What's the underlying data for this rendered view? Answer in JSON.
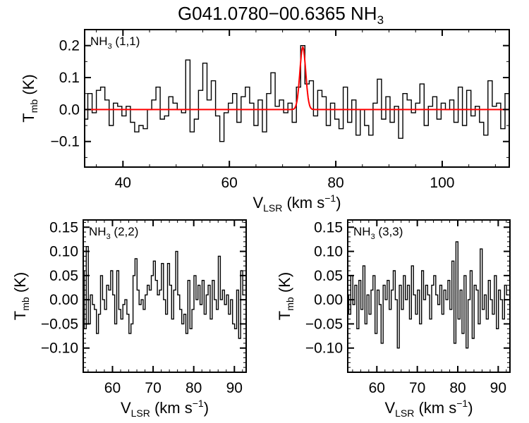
{
  "title": {
    "main": "G041.0780−00.6365 NH",
    "sub": "3"
  },
  "chart_data": [
    {
      "type": "line",
      "style": "step",
      "label": {
        "main": "NH",
        "sub": "3",
        "rest": " (1,1)"
      },
      "xlabel": {
        "main": "V",
        "sub": "LSR",
        "rest": " (km s",
        "sup": "−1",
        "end": ")"
      },
      "ylabel": {
        "main": "T",
        "sub": "mb",
        "rest": " (K)"
      },
      "xlim": [
        32.8,
        112.6
      ],
      "ylim": [
        -0.18,
        0.25
      ],
      "xticks": [
        40,
        60,
        80,
        100
      ],
      "xtick_labels": [
        "40",
        "60",
        "80",
        "100"
      ],
      "yticks": [
        -0.1,
        0.0,
        0.1,
        0.2
      ],
      "ytick_labels": [
        "−0.1",
        "0.0",
        "0.1",
        "0.2"
      ],
      "x_start": 33.0,
      "x_step": 0.8,
      "values": [
        -0.03,
        0.05,
        -0.01,
        0.06,
        0.07,
        0.03,
        -0.05,
        0.02,
        0.01,
        -0.02,
        0.01,
        -0.04,
        -0.07,
        -0.05,
        -0.06,
        0.0,
        0.03,
        0.07,
        -0.03,
        -0.02,
        0.04,
        0.02,
        0.0,
        -0.01,
        0.155,
        -0.07,
        -0.03,
        0.06,
        0.145,
        0.03,
        0.09,
        -0.02,
        -0.1,
        -0.01,
        0.02,
        0.05,
        -0.04,
        0.04,
        0.07,
        0.02,
        -0.05,
        0.03,
        -0.07,
        0.05,
        0.115,
        0.01,
        0.03,
        -0.01,
        0.02,
        -0.04,
        0.07,
        0.2,
        0.08,
        0.09,
        -0.02,
        0.06,
        0.04,
        -0.05,
        0.02,
        -0.03,
        -0.06,
        0.07,
        -0.04,
        0.03,
        -0.08,
        0.0,
        -0.05,
        -0.08,
        0.02,
        0.095,
        -0.03,
        0.04,
        -0.04,
        0.01,
        -0.09,
        0.05,
        0.03,
        -0.01,
        0.02,
        0.08,
        -0.05,
        0.01,
        0.04,
        -0.03,
        0.02,
        0.0,
        0.03,
        -0.04,
        0.07,
        -0.05,
        0.06,
        -0.02,
        0.01,
        -0.04,
        -0.08,
        0.09,
        0.01,
        0.02,
        -0.06,
        0.05
      ],
      "fit": {
        "type": "gaussian",
        "amplitude": 0.195,
        "center": 73.8,
        "sigma": 0.55,
        "color": "#ff0000"
      }
    },
    {
      "type": "line",
      "style": "step",
      "label": {
        "main": "NH",
        "sub": "3",
        "rest": " (2,2)"
      },
      "xlabel": {
        "main": "V",
        "sub": "LSR",
        "rest": " (km s",
        "sup": "−1",
        "end": ")"
      },
      "ylabel": {
        "main": "T",
        "sub": "mb",
        "rest": " (K)"
      },
      "xlim": [
        52.8,
        92.9
      ],
      "ylim": [
        -0.15,
        0.165
      ],
      "xticks": [
        60,
        70,
        80,
        90
      ],
      "xtick_labels": [
        "60",
        "70",
        "80",
        "90"
      ],
      "yticks": [
        -0.1,
        -0.05,
        0.0,
        0.05,
        0.1,
        0.15
      ],
      "ytick_labels": [
        "−0.10",
        "−0.05",
        "0.00",
        "0.05",
        "0.10",
        "0.15"
      ],
      "x_start": 52.8,
      "x_step": 0.5,
      "values": [
        0.06,
        -0.06,
        0.11,
        -0.05,
        0.01,
        -0.01,
        -0.02,
        -0.07,
        -0.03,
        0.05,
        0.0,
        -0.02,
        0.03,
        0.02,
        0.06,
        0.01,
        -0.05,
        0.06,
        -0.02,
        -0.04,
        -0.01,
        0.0,
        -0.03,
        -0.07,
        -0.05,
        0.05,
        0.085,
        0.02,
        -0.01,
        0.0,
        -0.02,
        0.01,
        0.03,
        0.02,
        0.05,
        0.08,
        0.04,
        0.01,
        0.02,
        0.075,
        0.0,
        -0.03,
        0.075,
        0.03,
        -0.04,
        0.02,
        0.1,
        0.01,
        -0.02,
        -0.05,
        -0.03,
        -0.07,
        0.04,
        -0.06,
        -0.02,
        0.05,
        0.0,
        0.03,
        -0.01,
        0.04,
        -0.03,
        0.01,
        0.03,
        -0.04,
        0.04,
        0.0,
        -0.02,
        0.09,
        0.0,
        0.02,
        -0.01,
        0.01,
        -0.03,
        0.0,
        -0.05,
        -0.06,
        0.02,
        -0.08,
        0.06,
        0.01
      ]
    },
    {
      "type": "line",
      "style": "step",
      "label": {
        "main": "NH",
        "sub": "3",
        "rest": " (3,3)"
      },
      "xlabel": {
        "main": "V",
        "sub": "LSR",
        "rest": " (km s",
        "sup": "−1",
        "end": ")"
      },
      "ylabel": {
        "main": "T",
        "sub": "mb",
        "rest": " (K)"
      },
      "xlim": [
        52.8,
        92.9
      ],
      "ylim": [
        -0.15,
        0.165
      ],
      "xticks": [
        60,
        70,
        80,
        90
      ],
      "xtick_labels": [
        "60",
        "70",
        "80",
        "90"
      ],
      "yticks": [
        -0.1,
        -0.05,
        0.0,
        0.05,
        0.1,
        0.15
      ],
      "ytick_labels": [
        "−0.10",
        "−0.05",
        "0.00",
        "0.05",
        "0.10",
        "0.15"
      ],
      "x_start": 52.8,
      "x_step": 0.5,
      "values": [
        0.01,
        -0.03,
        0.05,
        -0.01,
        0.03,
        -0.06,
        0.04,
        -0.02,
        0.07,
        -0.05,
        0.01,
        -0.03,
        0.02,
        0.05,
        -0.07,
        0.02,
        -0.01,
        -0.09,
        0.03,
        0.0,
        0.04,
        -0.02,
        0.02,
        0.06,
        0.0,
        -0.1,
        0.03,
        -0.02,
        0.05,
        0.0,
        0.03,
        -0.04,
        0.07,
        0.01,
        -0.03,
        0.02,
        -0.05,
        0.06,
        0.0,
        0.03,
        0.01,
        -0.04,
        0.03,
        0.05,
        0.01,
        -0.01,
        0.03,
        -0.03,
        0.02,
        0.0,
        0.04,
        -0.02,
        0.08,
        -0.09,
        0.12,
        -0.04,
        0.02,
        -0.07,
        0.05,
        -0.1,
        0.0,
        0.06,
        -0.08,
        0.03,
        0.02,
        -0.05,
        0.105,
        -0.02,
        0.01,
        -0.04,
        0.04,
        0.0,
        -0.03,
        0.05,
        -0.06,
        0.02,
        0.0,
        -0.04,
        0.03,
        0.01
      ]
    }
  ]
}
